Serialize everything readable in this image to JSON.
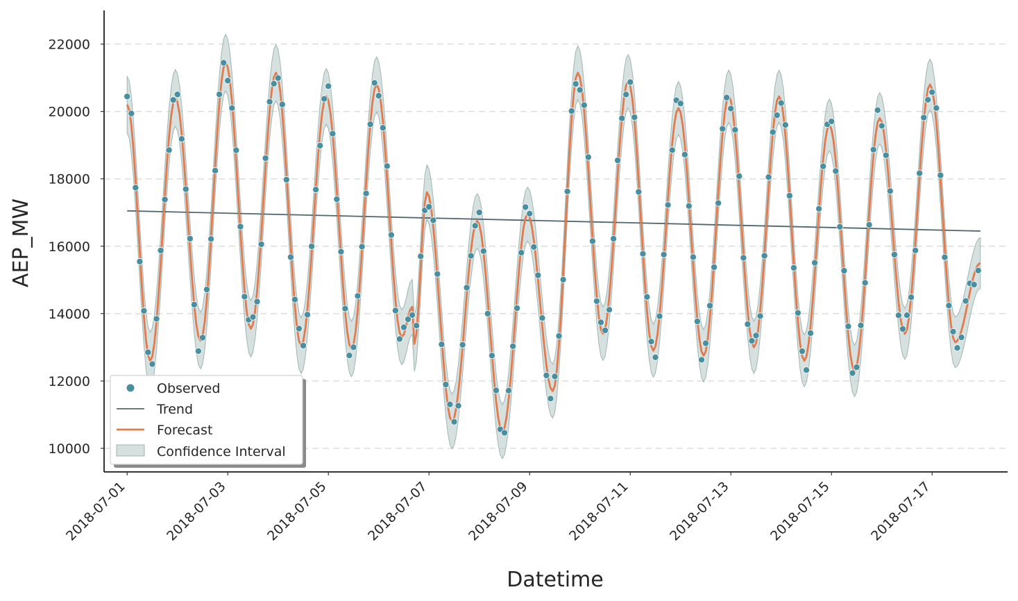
{
  "chart_data": {
    "type": "line",
    "title": "",
    "xlabel": "Datetime",
    "ylabel": "AEP_MW",
    "x_ticks": [
      "2018-07-01",
      "2018-07-03",
      "2018-07-05",
      "2018-07-07",
      "2018-07-09",
      "2018-07-11",
      "2018-07-13",
      "2018-07-15",
      "2018-07-17"
    ],
    "x_range": [
      "2018-06-30T13:00",
      "2018-07-18T12:00"
    ],
    "y_ticks": [
      10000,
      12000,
      14000,
      16000,
      18000,
      20000,
      22000
    ],
    "ylim": [
      9300,
      23000
    ],
    "grid": "horizontal dashed",
    "legend_position": "lower-left",
    "legend": [
      "Observed",
      "Trend",
      "Forecast",
      "Confidence Interval"
    ],
    "colors": {
      "observed": "#4a8f9f",
      "trend": "#4f666e",
      "forecast": "#e07b4f",
      "confidence": "#b9ccc9",
      "grid": "#dddddd",
      "axis": "#333333"
    },
    "trend": [
      {
        "x": "2018-07-01T00:00",
        "y": 17050
      },
      {
        "x": "2018-07-17T23:00",
        "y": 16450
      }
    ],
    "forecast_peaks": [
      {
        "x": "2018-07-01T00:00",
        "y": 20200
      },
      {
        "x": "2018-07-01T11:00",
        "y": 12600
      },
      {
        "x": "2018-07-01T23:00",
        "y": 20400
      },
      {
        "x": "2018-07-02T11:00",
        "y": 13200
      },
      {
        "x": "2018-07-02T23:00",
        "y": 21450
      },
      {
        "x": "2018-07-03T11:00",
        "y": 13550
      },
      {
        "x": "2018-07-03T23:00",
        "y": 21150
      },
      {
        "x": "2018-07-04T11:00",
        "y": 13050
      },
      {
        "x": "2018-07-04T23:00",
        "y": 20450
      },
      {
        "x": "2018-07-05T11:00",
        "y": 12950
      },
      {
        "x": "2018-07-05T23:00",
        "y": 20800
      },
      {
        "x": "2018-07-06T11:00",
        "y": 13300
      },
      {
        "x": "2018-07-06T16:00",
        "y": 14200
      },
      {
        "x": "2018-07-06T17:00",
        "y": 13100
      },
      {
        "x": "2018-07-06T23:00",
        "y": 17600
      },
      {
        "x": "2018-07-07T11:00",
        "y": 10800
      },
      {
        "x": "2018-07-07T23:00",
        "y": 16750
      },
      {
        "x": "2018-07-08T11:00",
        "y": 10500
      },
      {
        "x": "2018-07-08T23:00",
        "y": 16950
      },
      {
        "x": "2018-07-09T11:00",
        "y": 11700
      },
      {
        "x": "2018-07-09T23:00",
        "y": 21150
      },
      {
        "x": "2018-07-10T11:00",
        "y": 13400
      },
      {
        "x": "2018-07-10T23:00",
        "y": 20900
      },
      {
        "x": "2018-07-11T11:00",
        "y": 12900
      },
      {
        "x": "2018-07-11T23:00",
        "y": 20100
      },
      {
        "x": "2018-07-12T11:00",
        "y": 12750
      },
      {
        "x": "2018-07-12T23:00",
        "y": 20450
      },
      {
        "x": "2018-07-13T11:00",
        "y": 13000
      },
      {
        "x": "2018-07-13T23:00",
        "y": 20450
      },
      {
        "x": "2018-07-14T11:00",
        "y": 12600
      },
      {
        "x": "2018-07-14T23:00",
        "y": 19600
      },
      {
        "x": "2018-07-15T11:00",
        "y": 12300
      },
      {
        "x": "2018-07-15T23:00",
        "y": 19800
      },
      {
        "x": "2018-07-16T11:00",
        "y": 13400
      },
      {
        "x": "2018-07-16T23:00",
        "y": 20800
      },
      {
        "x": "2018-07-17T11:00",
        "y": 13150
      },
      {
        "x": "2018-07-17T23:00",
        "y": 15500
      }
    ],
    "confidence_halfwidth": [
      {
        "x": "2018-07-01T00:00",
        "y": 850
      },
      {
        "x": "2018-07-17T23:00",
        "y": 750
      }
    ]
  }
}
